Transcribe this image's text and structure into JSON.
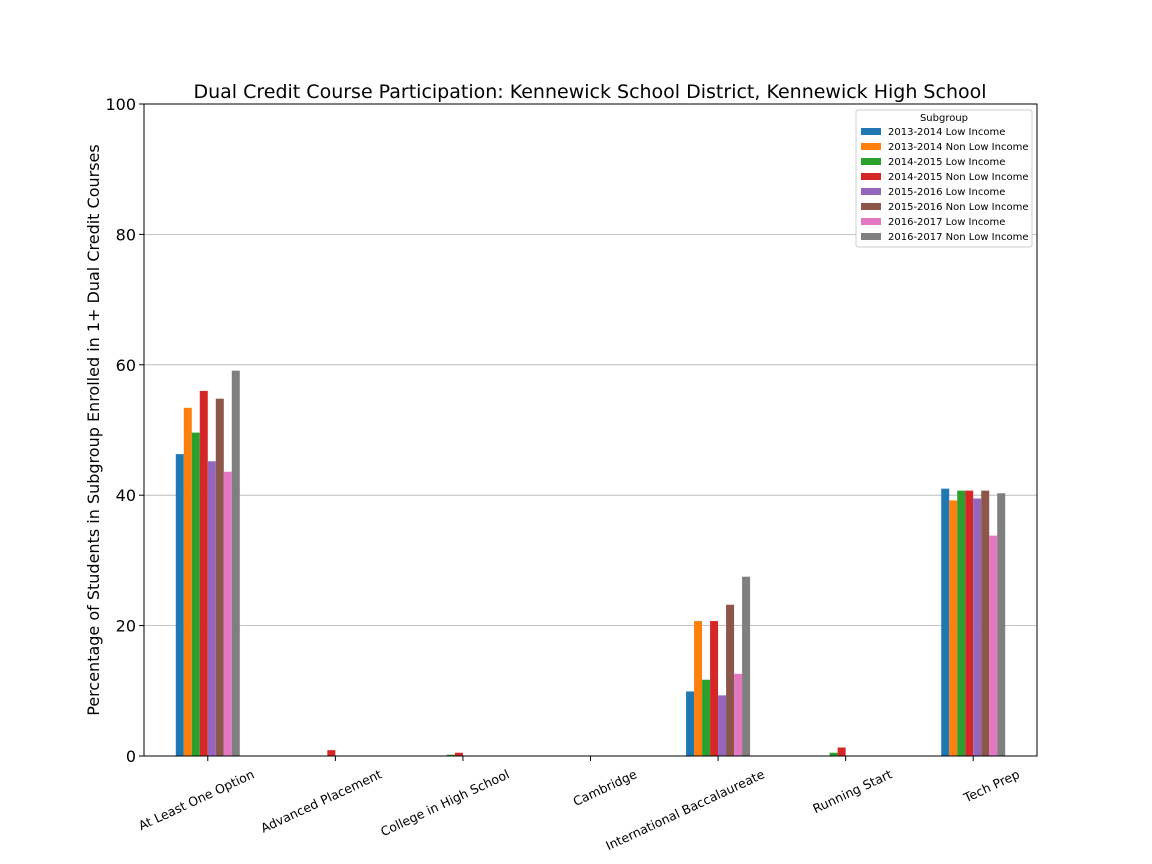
{
  "chart_data": {
    "type": "bar",
    "title": "Dual Credit Course Participation: Kennewick School District, Kennewick High School",
    "xlabel": "",
    "ylabel": "Percentage of Students in Subgroup Enrolled in 1+ Dual Credit Courses",
    "ylim": [
      0,
      100
    ],
    "yticks": [
      "0",
      "20",
      "40",
      "60",
      "80",
      "100"
    ],
    "grid": "horizontal",
    "legend": {
      "title": "Subgroup",
      "placement": "top-right"
    },
    "categories": [
      "At Least One Option",
      "Advanced Placement",
      "College in High School",
      "Cambridge",
      "International Baccalaureate",
      "Running Start",
      "Tech Prep"
    ],
    "series": [
      {
        "name": "2013-2014 Low Income",
        "color": "#1f77b4",
        "values": [
          46.3,
          0,
          0,
          0,
          9.9,
          0,
          41.0
        ]
      },
      {
        "name": "2013-2014 Non Low Income",
        "color": "#ff7f0e",
        "values": [
          53.4,
          0,
          0,
          0,
          20.7,
          0,
          39.2
        ]
      },
      {
        "name": "2014-2015 Low Income",
        "color": "#2ca02c",
        "values": [
          49.6,
          0,
          0.2,
          0,
          11.7,
          0.5,
          40.7
        ]
      },
      {
        "name": "2014-2015 Non Low Income",
        "color": "#d62728",
        "values": [
          56.0,
          0.9,
          0.5,
          0,
          20.7,
          1.3,
          40.7
        ]
      },
      {
        "name": "2015-2016 Low Income",
        "color": "#9467bd",
        "values": [
          45.2,
          0,
          0,
          0,
          9.3,
          0,
          39.5
        ]
      },
      {
        "name": "2015-2016 Non Low Income",
        "color": "#8c564b",
        "values": [
          54.8,
          0,
          0,
          0,
          23.2,
          0,
          40.7
        ]
      },
      {
        "name": "2016-2017 Low Income",
        "color": "#e377c2",
        "values": [
          43.6,
          0,
          0,
          0,
          12.6,
          0,
          33.8
        ]
      },
      {
        "name": "2016-2017 Non Low Income",
        "color": "#7f7f7f",
        "values": [
          59.1,
          0,
          0,
          0,
          27.5,
          0,
          40.3
        ]
      }
    ]
  }
}
